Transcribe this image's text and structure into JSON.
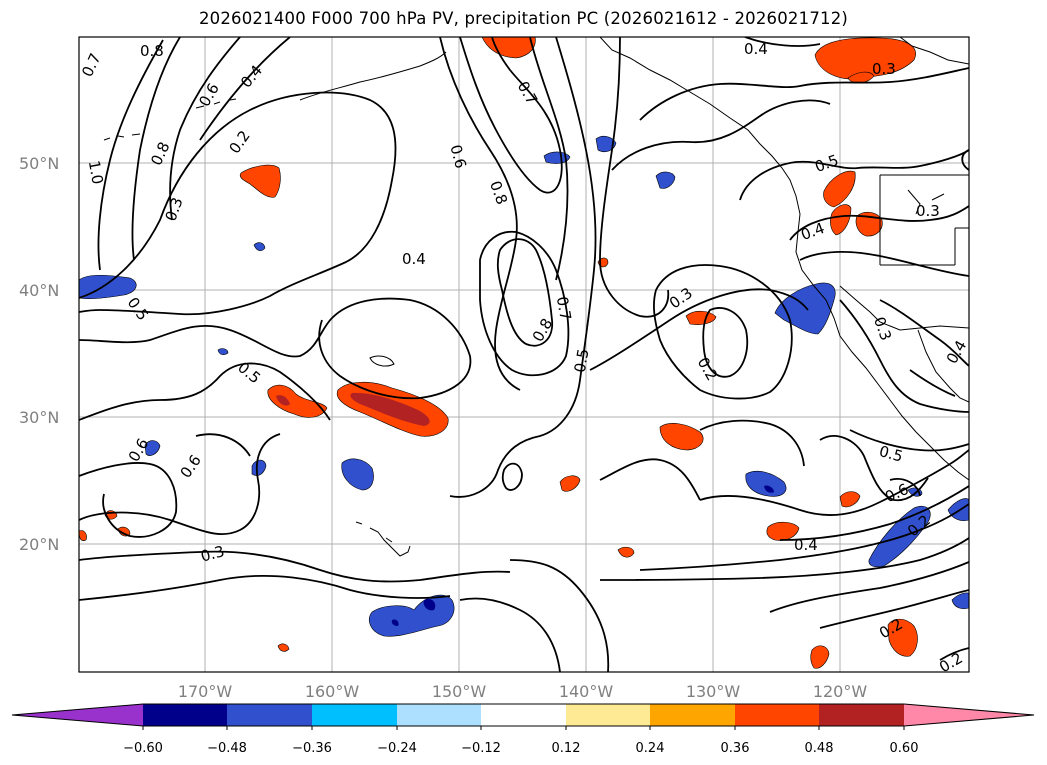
{
  "title": "2026021400 F000 700 hPa PV, precipitation PC (2026021612 - 2026021712)",
  "map": {
    "lat_labels": [
      "50°N",
      "40°N",
      "30°N",
      "20°N"
    ],
    "lon_labels": [
      "170°W",
      "160°W",
      "150°W",
      "140°W",
      "130°W",
      "120°W"
    ],
    "contour_labels": [
      "0.7",
      "0.8",
      "0.6",
      "0.4",
      "0.2",
      "1.0",
      "0.8",
      "0.3",
      "0.5",
      "0.4",
      "0.6",
      "0.8",
      "0.7",
      "0.8",
      "0.7",
      "0.5",
      "0.3",
      "0.2",
      "0.4",
      "0.3",
      "0.5",
      "0.3",
      "0.4",
      "0.3",
      "0.4",
      "0.5",
      "0.6",
      "0.6",
      "0.3",
      "0.5",
      "0.6",
      "0.2",
      "0.4",
      "0.2",
      "0.2"
    ]
  },
  "colorbar": {
    "colors": [
      "#9932cc",
      "#00008b",
      "#3050cd",
      "#00bfff",
      "#addfff",
      "#ffffff",
      "#fee994",
      "#ffa500",
      "#ff4500",
      "#b22222",
      "#ff88a8"
    ],
    "tick_labels": [
      "−0.60",
      "−0.48",
      "−0.36",
      "−0.24",
      "−0.12",
      "0.12",
      "0.24",
      "0.36",
      "0.48",
      "0.60"
    ]
  }
}
